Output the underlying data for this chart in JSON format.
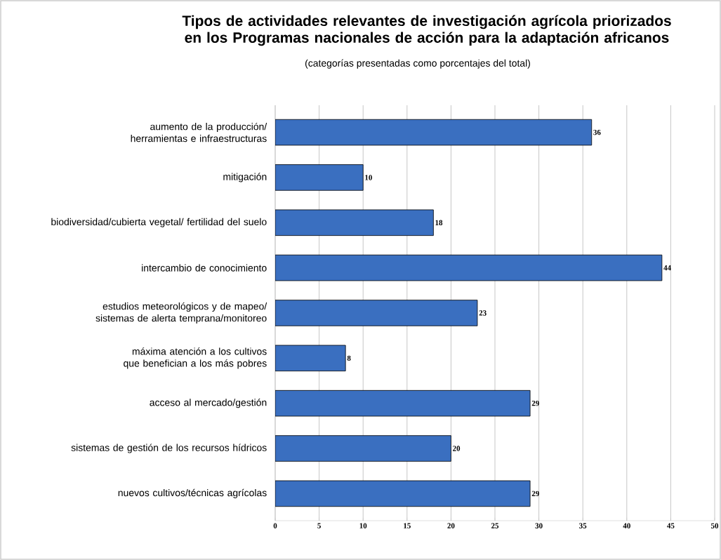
{
  "chart_data": {
    "type": "bar",
    "orientation": "horizontal",
    "title": "Tipos de actividades relevantes de investigación agrícola priorizados en los Programas nacionales de acción para la adaptación africanos",
    "subtitle": "(categorías presentadas como porcentajes del total)",
    "categories": [
      "aumento de la producción/ herramientas e infraestructuras",
      "mitigación",
      "biodiversidad/cubierta vegetal/ fertilidad del suelo",
      "intercambio de conocimiento",
      "estudios meteorológicos y de mapeo/ sistemas de alerta temprana/monitoreo",
      "máxima atención a los cultivos que benefician a los más pobres",
      "acceso al mercado/gestión",
      "sistemas de gestión de los recursos hídricos",
      "nuevos cultivos/técnicas agrícolas"
    ],
    "values": [
      36,
      10,
      18,
      44,
      23,
      8,
      29,
      20,
      29
    ],
    "color": "#3a6fc0",
    "xlim": [
      0,
      50
    ],
    "xticks": [
      0,
      5,
      10,
      15,
      20,
      25,
      30,
      35,
      40,
      45,
      50
    ],
    "grid": "x",
    "data_labels": true
  }
}
